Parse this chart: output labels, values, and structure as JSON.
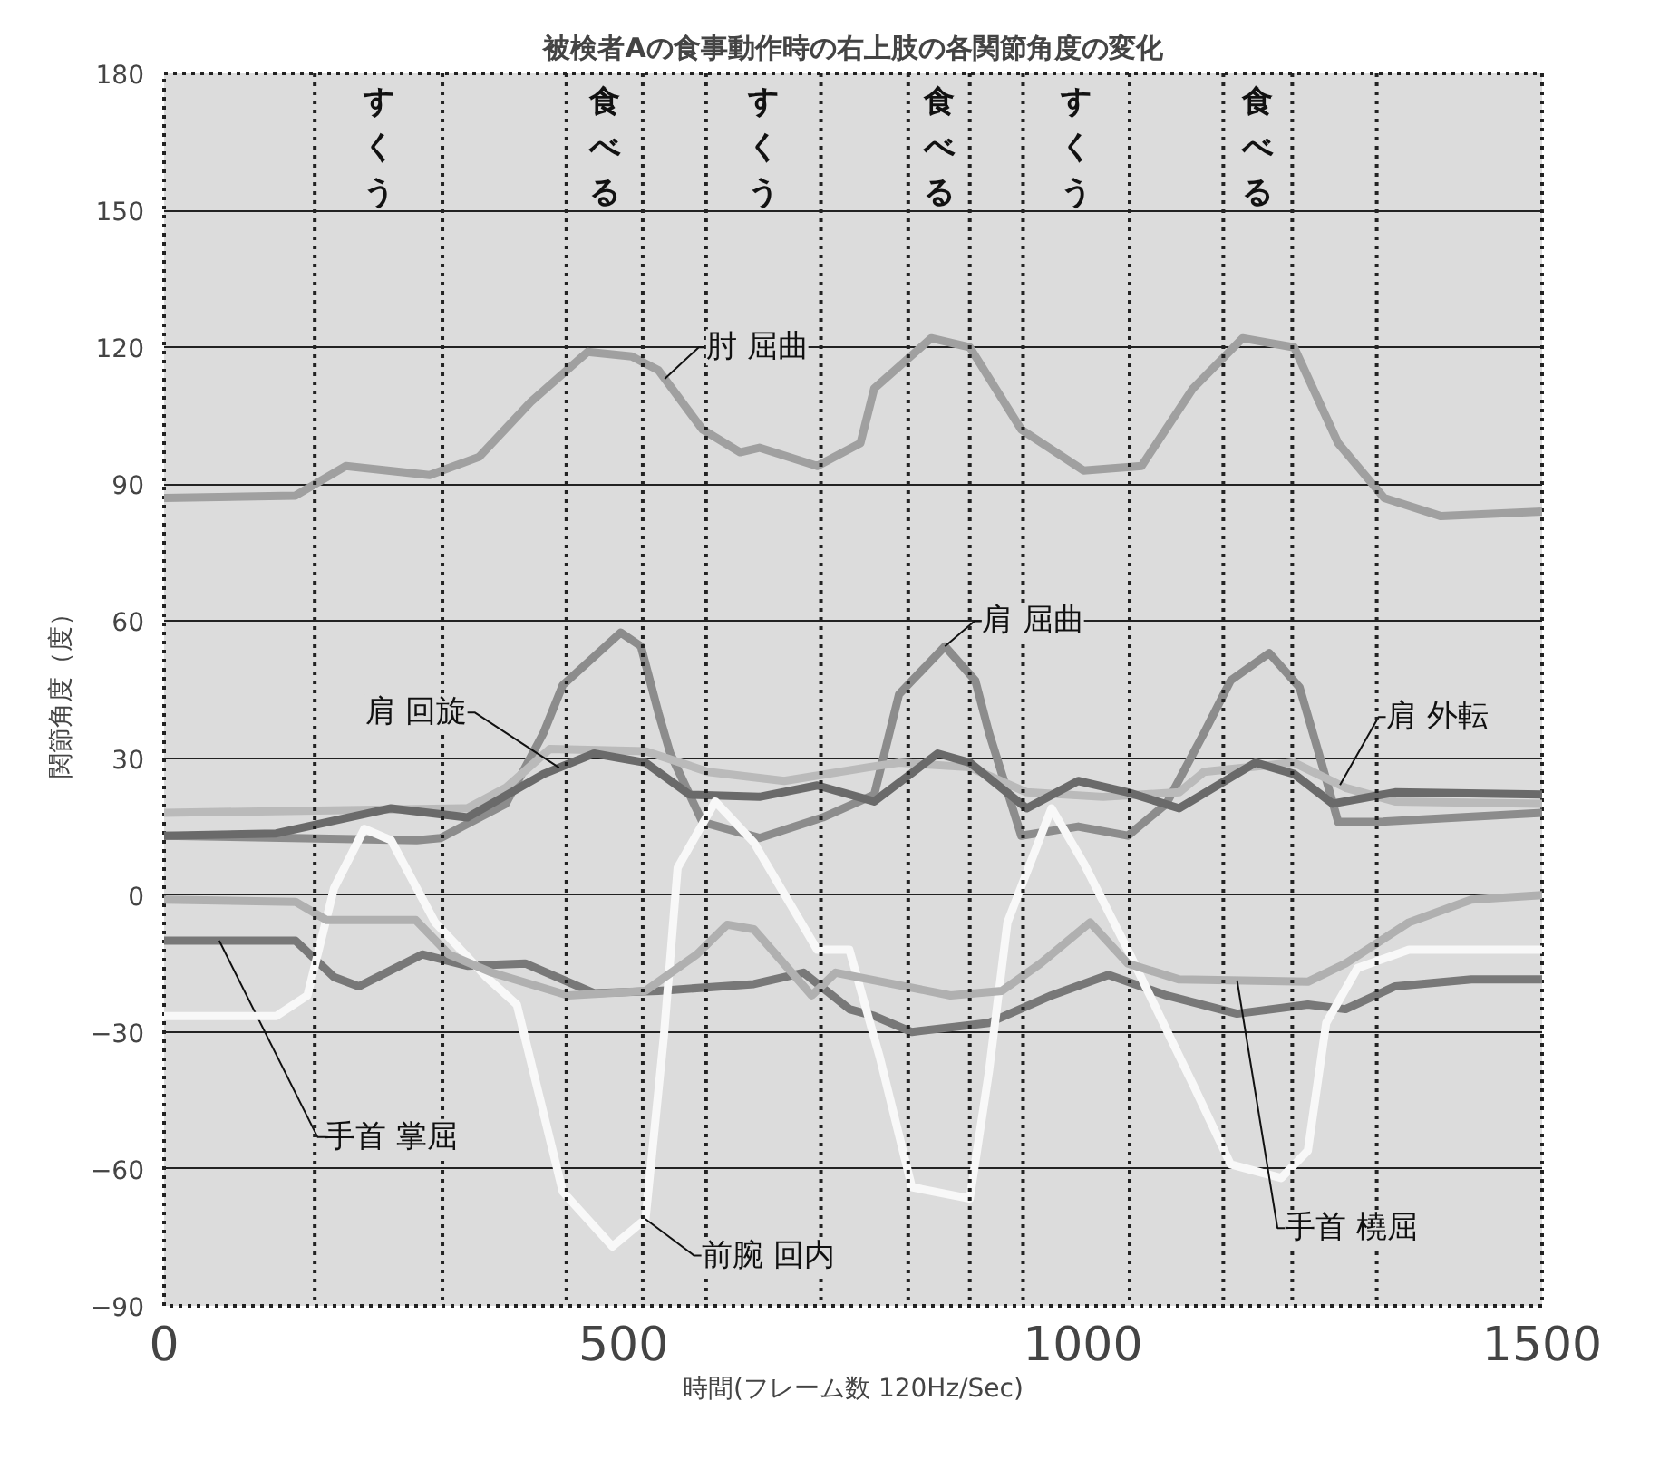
{
  "chart_data": {
    "type": "line",
    "title": "被検者Aの食事動作時の右上肢の各関節角度の変化",
    "xlabel": "時間(フレーム数 120Hz/Sec)",
    "ylabel": "関節角度（度）",
    "xlim": [
      0,
      1500
    ],
    "xticks": [
      0,
      500,
      1000,
      1500
    ],
    "ylim": [
      -90,
      180
    ],
    "yticks": [
      -90,
      -60,
      -30,
      0,
      30,
      60,
      90,
      120,
      150,
      180
    ],
    "grid": "y",
    "marker": "none",
    "line_style": "solid",
    "annotations": [
      "すくう",
      "食べる",
      "すくう",
      "食べる",
      "すくう",
      "食べる"
    ],
    "ref_lines": [
      {
        "axis": "x",
        "value": 164,
        "label": null,
        "line_style": "dotted"
      },
      {
        "axis": "x",
        "value": 303,
        "label": null,
        "line_style": "dotted"
      },
      {
        "axis": "x",
        "value": 438,
        "label": null,
        "line_style": "dotted"
      },
      {
        "axis": "x",
        "value": 521,
        "label": null,
        "line_style": "dotted"
      },
      {
        "axis": "x",
        "value": 590,
        "label": null,
        "line_style": "dotted"
      },
      {
        "axis": "x",
        "value": 715,
        "label": null,
        "line_style": "dotted"
      },
      {
        "axis": "x",
        "value": 810,
        "label": null,
        "line_style": "dotted"
      },
      {
        "axis": "x",
        "value": 877,
        "label": null,
        "line_style": "dotted"
      },
      {
        "axis": "x",
        "value": 935,
        "label": null,
        "line_style": "dotted"
      },
      {
        "axis": "x",
        "value": 1051,
        "label": null,
        "line_style": "dotted"
      },
      {
        "axis": "x",
        "value": 1153,
        "label": null,
        "line_style": "dotted"
      },
      {
        "axis": "x",
        "value": 1228,
        "label": null,
        "line_style": "dotted"
      },
      {
        "axis": "x",
        "value": 1320,
        "label": null,
        "line_style": "dotted"
      }
    ],
    "series": [
      {
        "name": "肘 屈曲",
        "color": "#a0a0a0",
        "x": [
          0,
          143,
          198,
          289,
          343,
          399,
          461,
          509,
          538,
          586,
          627,
          648,
          711,
          758,
          773,
          835,
          877,
          933,
          1001,
          1064,
          1120,
          1174,
          1230,
          1278,
          1328,
          1390,
          1500
        ],
        "values": [
          87,
          87.5,
          94,
          92,
          96,
          108,
          119,
          118,
          115,
          102,
          97,
          98,
          94,
          99,
          111,
          122,
          120,
          102,
          93,
          94,
          111,
          122,
          120,
          99,
          87,
          83,
          84
        ]
      },
      {
        "name": "肩 屈曲",
        "color": "#8c8c8c",
        "x": [
          0,
          275,
          301,
          372,
          413,
          434,
          497,
          519,
          538,
          551,
          586,
          648,
          717,
          773,
          800,
          850,
          883,
          898,
          933,
          995,
          1049,
          1091,
          1132,
          1161,
          1203,
          1236,
          1257,
          1278,
          1320,
          1500
        ],
        "values": [
          13,
          12,
          12.5,
          20,
          35.5,
          46,
          57.5,
          54.5,
          40,
          31,
          16,
          12.5,
          17,
          22,
          44,
          54.5,
          47,
          35.5,
          13,
          15,
          13,
          20,
          35.5,
          47,
          53,
          45.5,
          31,
          16,
          16,
          18
        ]
      },
      {
        "name": "肩 外転",
        "color": "#bababa",
        "x": [
          0,
          330,
          372,
          420,
          524,
          592,
          675,
          767,
          800,
          877,
          939,
          1022,
          1105,
          1132,
          1230,
          1286,
          1340,
          1500
        ],
        "values": [
          18,
          19,
          23.5,
          32,
          31.5,
          27,
          25,
          28,
          29,
          28,
          22.5,
          21.5,
          22.5,
          27,
          29,
          23.5,
          20.5,
          20
        ]
      },
      {
        "name": "肩 回旋",
        "color": "#6a6a6a",
        "x": [
          0,
          122,
          247,
          330,
          413,
          468,
          524,
          572,
          648,
          711,
          773,
          842,
          877,
          939,
          995,
          1049,
          1105,
          1188,
          1230,
          1272,
          1340,
          1500
        ],
        "values": [
          13,
          13.5,
          19,
          17,
          26.5,
          31,
          29,
          22,
          21.5,
          24,
          20.5,
          31,
          29,
          19,
          25,
          22.5,
          19,
          29,
          26.5,
          20,
          22.5,
          22
        ]
      },
      {
        "name": "手首 掌屈",
        "color": "#787878",
        "x": [
          0,
          143,
          185,
          212,
          281,
          330,
          393,
          468,
          538,
          642,
          696,
          746,
          773,
          814,
          898,
          966,
          1028,
          1091,
          1168,
          1245,
          1286,
          1340,
          1423,
          1500
        ],
        "values": [
          -10,
          -10,
          -18,
          -20,
          -13,
          -15.5,
          -15,
          -21.5,
          -21,
          -19.5,
          -17,
          -25,
          -26.5,
          -30,
          -28,
          -22,
          -17.5,
          -22,
          -26,
          -24,
          -25,
          -20,
          -18.5,
          -18.5
        ]
      },
      {
        "name": "前腕 回内",
        "color": "#f8f8f8",
        "x": [
          0,
          122,
          156,
          185,
          218,
          247,
          295,
          351,
          384,
          434,
          488,
          524,
          544,
          559,
          600,
          642,
          711,
          746,
          779,
          814,
          877,
          898,
          918,
          966,
          1001,
          1049,
          1120,
          1161,
          1216,
          1245,
          1265,
          1299,
          1355,
          1500
        ],
        "values": [
          -26.5,
          -26.5,
          -22,
          1.5,
          14.5,
          12,
          -6,
          -18,
          -24,
          -65,
          -77,
          -71,
          -31,
          6,
          20.5,
          11.5,
          -12,
          -12,
          -35.5,
          -64,
          -66.5,
          -38.5,
          -6,
          19,
          7,
          -12,
          -41.5,
          -59,
          -62,
          -56,
          -28,
          -16,
          -12,
          -12
        ]
      },
      {
        "name": "手首 橈屈",
        "color": "#b0b0b0",
        "x": [
          0,
          143,
          177,
          274,
          310,
          357,
          440,
          524,
          580,
          613,
          642,
          705,
          731,
          856,
          912,
          954,
          1008,
          1049,
          1105,
          1245,
          1286,
          1355,
          1423,
          1500
        ],
        "values": [
          -1,
          -1.5,
          -5.5,
          -5.5,
          -13,
          -17,
          -22,
          -21,
          -13,
          -6.5,
          -7.5,
          -22,
          -17,
          -22,
          -21,
          -15,
          -6,
          -15,
          -18.5,
          -19,
          -15,
          -6,
          -1,
          0
        ]
      }
    ]
  }
}
